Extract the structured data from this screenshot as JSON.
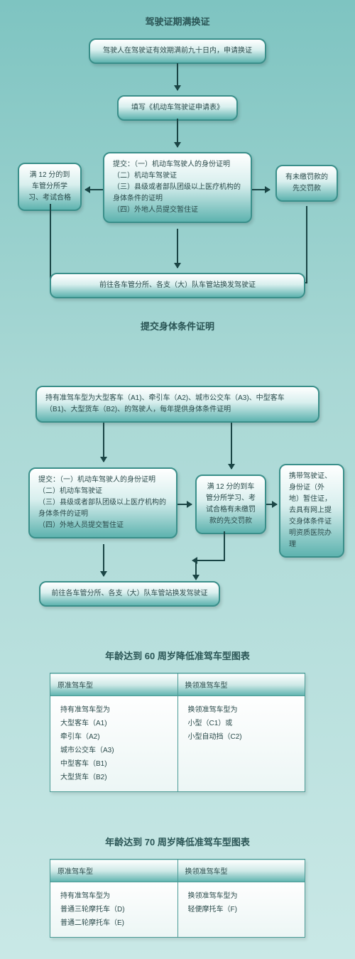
{
  "flow1": {
    "title": "驾驶证期满换证",
    "b1": "驾驶人在驾驶证有效期满前九十日内，申请换证",
    "b2": "填写《机动车驾驶证申请表》",
    "b3": "提交：（一）机动车驾驶人的身份证明\n（二）机动车驾驶证\n（三）县级或者部队团级以上医疗机构的身体条件的证明\n（四）外地人员提交暂住证",
    "b4": "满 12 分的到车管分所学习、考试合格",
    "b5": "有未缴罚款的先交罚款",
    "b6": "前往各车管分所、各支（大）队车管站换发驾驶证"
  },
  "flow2": {
    "title": "提交身体条件证明",
    "b1": "持有准驾车型为大型客车（A1)、牵引车（A2)、城市公交车（A3)、中型客车（B1)、大型货车（B2)、的驾驶人，每年提供身体条件证明",
    "b2": "提交：（一）机动车驾驶人的身份证明\n（二）机动车驾驶证\n（三）县级或者部队团级以上医疗机构的身体条件的证明\n（四）外地人员提交暂住证",
    "b3": "满 12 分的到车管分所学习、考试合格有未缴罚款的先交罚款",
    "b4": "携带驾驶证、身份证（外地）暂住证，去具有网上提交身体条件证明资质医院办理",
    "b5": "前往各车管分所、各支（大）队车管站换发驾驶证"
  },
  "table1": {
    "title": "年龄达到 60 周岁降低准驾车型图表",
    "col1": "原准驾车型",
    "col2": "换领准驾车型",
    "cell1": "持有准驾车型为\n大型客车（A1)\n牵引车（A2)\n城市公交车（A3)\n中型客车（B1)\n大型货车（B2)",
    "cell2": "换领准驾车型为\n小型（C1）或\n小型自动挡（C2)"
  },
  "table2": {
    "title": "年龄达到 70 周岁降低准驾车型图表",
    "col1": "原准驾车型",
    "col2": "换领准驾车型",
    "cell1": "持有准驾车型为\n普通三轮摩托车（D)\n普通二轮摩托车（E)",
    "cell2": "换领准驾车型为\n轻便摩托车（F)"
  },
  "colors": {
    "box_border": "#3a8f8a",
    "box_grad_top": "#ffffff",
    "box_grad_bottom": "#5eb3af",
    "arrow": "#1a4545",
    "bg_top": "#7ec4c1",
    "bg_bottom": "#c9e8e6"
  }
}
